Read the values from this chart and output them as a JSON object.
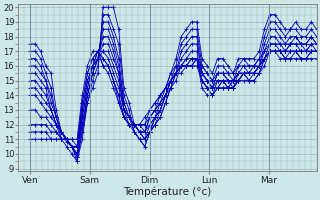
{
  "xlabel": "Température (°c)",
  "xlim": [
    0,
    100
  ],
  "ylim": [
    9,
    20
  ],
  "yticks": [
    9,
    10,
    11,
    12,
    13,
    14,
    15,
    16,
    17,
    18,
    19,
    20
  ],
  "day_positions": [
    4,
    24,
    44,
    64,
    84
  ],
  "day_labels": [
    "Ven",
    "Sam",
    "Dim",
    "Lun",
    "Mar"
  ],
  "bg_color": "#cce8e8",
  "grid_color": "#99bbbb",
  "line_color": "#0000bb",
  "series": [
    {
      "start": 4,
      "data": [
        17.5,
        17.5,
        17.0,
        16.0,
        15.5,
        13.0,
        11.5,
        10.8,
        10.5,
        9.5,
        11.5,
        13.5,
        14.5,
        15.5,
        20.0,
        20.0,
        20.0,
        18.5,
        14.5,
        13.5,
        12.0,
        11.5,
        11.0,
        11.5,
        12.5,
        13.5,
        14.5,
        15.5,
        16.5,
        18.0,
        18.5,
        19.0,
        19.0,
        16.5,
        16.0,
        15.5,
        16.5,
        16.5,
        16.0,
        15.5,
        16.5,
        16.5,
        16.5,
        16.5,
        17.0,
        18.5,
        19.5,
        19.5,
        19.0,
        18.5,
        18.5,
        19.0,
        18.5,
        18.5,
        19.0,
        18.5
      ]
    },
    {
      "start": 4,
      "data": [
        17.0,
        17.0,
        16.5,
        15.5,
        14.5,
        12.5,
        11.0,
        10.5,
        10.0,
        9.5,
        11.0,
        13.5,
        15.0,
        16.0,
        19.5,
        19.5,
        18.5,
        17.5,
        14.0,
        13.0,
        11.5,
        11.0,
        11.0,
        11.5,
        12.0,
        13.0,
        14.0,
        15.0,
        16.0,
        17.5,
        18.0,
        18.5,
        18.5,
        16.0,
        15.5,
        15.0,
        16.0,
        16.0,
        15.5,
        15.0,
        16.0,
        16.5,
        16.0,
        16.0,
        16.5,
        18.0,
        19.0,
        19.0,
        18.5,
        18.0,
        18.5,
        18.5,
        18.0,
        18.0,
        18.5,
        18.0
      ]
    },
    {
      "start": 4,
      "data": [
        16.5,
        16.5,
        16.0,
        15.0,
        14.0,
        12.5,
        11.5,
        11.0,
        10.5,
        9.8,
        11.5,
        14.0,
        15.5,
        16.5,
        19.0,
        19.0,
        18.0,
        16.5,
        13.5,
        12.5,
        11.5,
        11.0,
        10.5,
        11.5,
        12.0,
        12.5,
        13.5,
        14.5,
        15.5,
        17.0,
        17.5,
        18.0,
        18.0,
        15.5,
        15.0,
        14.5,
        15.5,
        15.5,
        15.0,
        15.0,
        15.5,
        16.0,
        15.5,
        15.5,
        16.0,
        17.5,
        18.5,
        18.5,
        18.0,
        17.5,
        17.5,
        18.0,
        17.5,
        17.5,
        18.0,
        17.5
      ]
    },
    {
      "start": 4,
      "data": [
        16.0,
        16.0,
        15.5,
        15.0,
        13.5,
        12.5,
        11.5,
        11.0,
        10.5,
        10.0,
        12.0,
        14.0,
        15.5,
        16.5,
        18.5,
        18.5,
        17.5,
        16.0,
        13.5,
        12.5,
        12.0,
        11.5,
        11.0,
        11.5,
        12.5,
        13.0,
        14.0,
        15.0,
        15.5,
        16.5,
        17.0,
        17.5,
        17.5,
        15.5,
        15.0,
        14.5,
        15.5,
        15.5,
        15.0,
        14.5,
        15.5,
        15.5,
        15.5,
        15.5,
        16.0,
        17.0,
        18.0,
        18.0,
        17.5,
        17.0,
        17.5,
        17.5,
        17.5,
        17.0,
        17.5,
        17.5
      ]
    },
    {
      "start": 4,
      "data": [
        15.5,
        15.5,
        15.0,
        14.5,
        13.0,
        12.0,
        11.0,
        11.0,
        10.5,
        9.8,
        12.0,
        14.0,
        15.5,
        16.5,
        18.0,
        18.0,
        17.0,
        15.5,
        13.0,
        12.0,
        11.5,
        11.0,
        10.5,
        11.5,
        12.0,
        12.5,
        13.5,
        14.5,
        15.0,
        16.0,
        16.5,
        17.0,
        17.0,
        15.0,
        14.5,
        14.0,
        15.0,
        15.0,
        14.5,
        14.5,
        15.0,
        15.5,
        15.0,
        15.5,
        15.5,
        16.5,
        17.5,
        17.5,
        17.0,
        16.5,
        17.0,
        17.0,
        16.5,
        16.5,
        17.0,
        17.0
      ]
    },
    {
      "start": 4,
      "data": [
        15.0,
        15.0,
        14.5,
        14.0,
        13.0,
        12.0,
        11.5,
        11.0,
        10.5,
        10.0,
        12.5,
        14.5,
        16.0,
        16.5,
        17.5,
        17.5,
        16.5,
        15.5,
        13.0,
        12.5,
        12.0,
        11.5,
        11.0,
        12.0,
        12.5,
        13.0,
        14.0,
        15.0,
        15.5,
        16.0,
        16.5,
        16.5,
        16.5,
        15.0,
        14.5,
        14.0,
        14.5,
        15.0,
        14.5,
        14.5,
        15.0,
        15.5,
        15.0,
        15.0,
        15.5,
        16.5,
        17.0,
        17.0,
        17.0,
        16.5,
        16.5,
        17.0,
        16.5,
        16.5,
        17.0,
        17.0
      ]
    },
    {
      "start": 4,
      "data": [
        14.5,
        14.5,
        14.0,
        13.5,
        13.0,
        12.0,
        11.5,
        11.0,
        10.5,
        10.0,
        12.5,
        14.5,
        16.0,
        16.5,
        17.0,
        17.0,
        16.0,
        15.0,
        13.0,
        12.5,
        12.0,
        11.5,
        11.5,
        12.0,
        12.5,
        13.0,
        14.0,
        14.5,
        15.5,
        16.0,
        16.0,
        16.5,
        16.5,
        14.5,
        14.0,
        14.0,
        14.5,
        14.5,
        14.5,
        14.5,
        15.0,
        15.0,
        15.0,
        15.0,
        15.5,
        16.0,
        17.0,
        17.0,
        16.5,
        16.5,
        16.5,
        16.5,
        16.5,
        16.5,
        16.5,
        16.5
      ]
    },
    {
      "start": 4,
      "data": [
        14.0,
        14.0,
        13.5,
        13.0,
        12.5,
        12.0,
        11.5,
        11.0,
        11.0,
        10.5,
        13.0,
        15.0,
        16.0,
        17.0,
        17.0,
        16.5,
        15.5,
        14.5,
        13.0,
        12.5,
        12.0,
        12.0,
        11.5,
        12.5,
        13.0,
        13.5,
        14.0,
        15.0,
        15.5,
        16.0,
        16.0,
        16.0,
        16.5,
        15.0,
        14.5,
        14.5,
        14.5,
        15.0,
        14.5,
        15.0,
        15.0,
        15.5,
        15.5,
        15.5,
        16.0,
        16.5,
        17.0,
        17.0,
        17.0,
        17.0,
        17.0,
        17.0,
        17.0,
        17.0,
        17.0,
        17.0
      ]
    },
    {
      "start": 4,
      "data": [
        13.0,
        13.0,
        12.5,
        12.5,
        12.0,
        11.5,
        11.0,
        11.0,
        10.5,
        10.0,
        13.0,
        15.0,
        16.0,
        17.0,
        16.5,
        16.0,
        15.0,
        14.0,
        12.5,
        12.0,
        12.0,
        11.5,
        11.5,
        12.5,
        13.0,
        13.5,
        14.0,
        15.0,
        15.5,
        15.5,
        16.0,
        16.0,
        16.0,
        15.0,
        14.5,
        14.5,
        14.5,
        14.5,
        14.5,
        15.0,
        15.0,
        15.5,
        15.5,
        15.5,
        16.0,
        16.5,
        17.0,
        17.0,
        17.0,
        17.0,
        17.0,
        17.0,
        17.0,
        17.0,
        17.0,
        17.0
      ]
    },
    {
      "start": 4,
      "data": [
        12.0,
        12.0,
        12.0,
        12.0,
        11.5,
        11.5,
        11.0,
        11.0,
        10.5,
        10.5,
        13.5,
        15.5,
        16.5,
        17.0,
        16.5,
        16.0,
        15.0,
        14.0,
        12.5,
        12.0,
        12.0,
        12.0,
        12.0,
        12.5,
        13.0,
        14.0,
        14.5,
        15.0,
        15.5,
        16.0,
        16.0,
        16.0,
        16.5,
        15.5,
        15.0,
        14.5,
        15.0,
        15.0,
        15.0,
        15.0,
        15.5,
        15.5,
        15.5,
        15.5,
        16.0,
        16.5,
        17.0,
        17.0,
        17.0,
        17.0,
        17.0,
        17.0,
        17.0,
        17.0,
        17.0,
        17.0
      ]
    },
    {
      "start": 4,
      "data": [
        11.5,
        11.5,
        11.5,
        11.5,
        11.0,
        11.0,
        11.0,
        11.0,
        10.5,
        10.5,
        13.5,
        15.5,
        16.5,
        17.0,
        16.0,
        16.0,
        15.0,
        13.5,
        12.5,
        12.0,
        12.0,
        12.0,
        12.0,
        13.0,
        13.5,
        14.0,
        14.5,
        15.0,
        15.5,
        16.0,
        16.0,
        16.0,
        16.5,
        15.5,
        15.0,
        15.0,
        15.0,
        15.0,
        15.0,
        15.0,
        15.5,
        15.5,
        15.5,
        16.0,
        16.0,
        16.5,
        17.0,
        17.0,
        17.0,
        17.0,
        17.5,
        17.5,
        17.0,
        17.0,
        17.5,
        17.0
      ]
    },
    {
      "start": 4,
      "data": [
        11.0,
        11.0,
        11.0,
        11.0,
        11.0,
        11.0,
        11.0,
        11.0,
        11.0,
        11.0,
        14.0,
        16.0,
        17.0,
        17.0,
        16.0,
        15.5,
        14.5,
        13.5,
        12.5,
        12.0,
        12.0,
        12.0,
        12.5,
        13.0,
        13.5,
        14.0,
        14.5,
        15.5,
        16.0,
        16.0,
        16.0,
        16.5,
        16.5,
        16.0,
        15.5,
        15.0,
        15.5,
        15.5,
        15.5,
        15.5,
        16.0,
        16.0,
        16.0,
        16.0,
        16.5,
        17.0,
        17.5,
        17.5,
        17.5,
        17.5,
        18.0,
        18.0,
        17.5,
        17.5,
        18.0,
        17.5
      ]
    }
  ]
}
